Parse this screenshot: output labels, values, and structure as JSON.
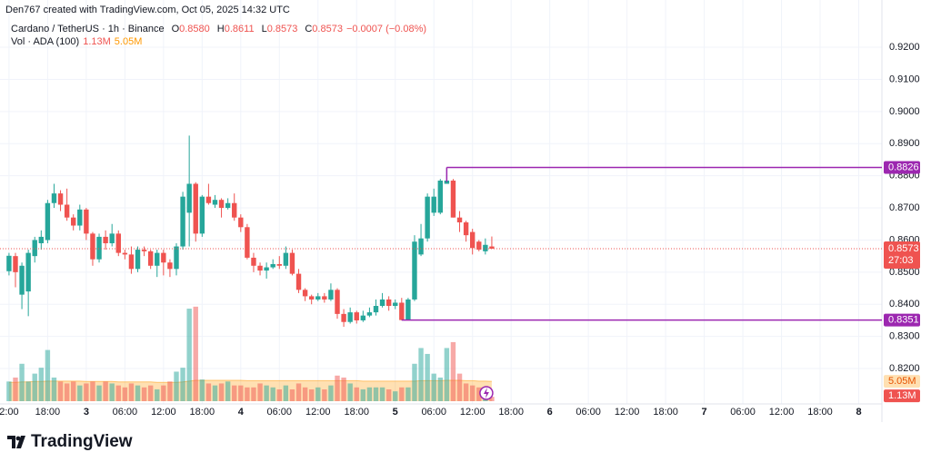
{
  "chart_data": {
    "type": "candlestick",
    "attribution": "Den767 created with TradingView.com, Oct 05, 2025 14:32 UTC",
    "symbol": "Cardano / TetherUS · 1h · Binance",
    "ohlc_legend": [
      {
        "key": "O",
        "value": "0.8580"
      },
      {
        "key": "H",
        "value": "0.8611"
      },
      {
        "key": "L",
        "value": "0.8573"
      },
      {
        "key": "C",
        "value": "0.8573"
      }
    ],
    "change": "−0.0007 (−0.08%)",
    "volume_title": "Vol · ADA (100)",
    "volume_label": "1.13M",
    "volume_ma_label": "5.05M",
    "brand": "TradingView",
    "up_color": "#26a69a",
    "down_color": "#ef5350",
    "level_color": "#9c27b0",
    "ma_color": "#ff9800",
    "x": [
      0,
      1,
      2,
      3,
      4,
      5,
      6,
      7,
      8,
      9,
      10,
      11,
      12,
      13,
      14,
      15,
      16,
      17,
      18,
      19,
      20,
      21,
      22,
      23,
      24,
      25,
      26,
      27,
      28,
      29,
      30,
      31,
      32,
      33,
      34,
      35,
      36,
      37,
      38,
      39,
      40,
      41,
      42,
      43,
      44,
      45,
      46,
      47,
      48,
      49,
      50,
      51,
      52,
      53,
      54,
      55,
      56,
      57,
      58,
      59,
      60,
      61,
      62,
      63,
      64,
      65,
      66,
      67,
      68,
      69,
      70,
      71,
      72,
      73,
      74,
      75
    ],
    "open": [
      0.8503,
      0.855,
      0.843,
      0.844,
      0.855,
      0.859,
      0.86,
      0.8715,
      0.8745,
      0.871,
      0.867,
      0.8645,
      0.8695,
      0.862,
      0.854,
      0.861,
      0.859,
      0.862,
      0.856,
      0.8555,
      0.851,
      0.857,
      0.8565,
      0.852,
      0.856,
      0.853,
      0.851,
      0.858,
      0.8685,
      0.8775,
      0.862,
      0.8735,
      0.871,
      0.8725,
      0.87,
      0.8715,
      0.867,
      0.864,
      0.8545,
      0.852,
      0.8505,
      0.8515,
      0.8525,
      0.852,
      0.856,
      0.8495,
      0.8445,
      0.8425,
      0.8415,
      0.8425,
      0.8415,
      0.8445,
      0.837,
      0.8345,
      0.8375,
      0.835,
      0.8365,
      0.8375,
      0.8395,
      0.8415,
      0.8395,
      0.8405,
      0.8351,
      0.8415,
      0.8555,
      0.8605,
      0.8685,
      0.8685,
      0.8775,
      0.8785,
      0.867,
      0.8655,
      0.8625,
      0.8595,
      0.8565,
      0.858
    ],
    "high": [
      0.856,
      0.856,
      0.853,
      0.857,
      0.861,
      0.863,
      0.8725,
      0.8775,
      0.8755,
      0.876,
      0.868,
      0.871,
      0.87,
      0.8625,
      0.862,
      0.863,
      0.865,
      0.863,
      0.857,
      0.858,
      0.858,
      0.858,
      0.857,
      0.857,
      0.857,
      0.854,
      0.859,
      0.875,
      0.8925,
      0.878,
      0.874,
      0.8775,
      0.874,
      0.873,
      0.873,
      0.8745,
      0.868,
      0.865,
      0.856,
      0.853,
      0.853,
      0.854,
      0.855,
      0.858,
      0.857,
      0.851,
      0.845,
      0.843,
      0.8435,
      0.8435,
      0.8465,
      0.845,
      0.8385,
      0.839,
      0.838,
      0.838,
      0.839,
      0.8415,
      0.8435,
      0.8425,
      0.8415,
      0.842,
      0.842,
      0.8615,
      0.865,
      0.8745,
      0.876,
      0.879,
      0.8826,
      0.879,
      0.869,
      0.866,
      0.8635,
      0.86,
      0.8605,
      0.8611
    ],
    "low": [
      0.849,
      0.8453,
      0.8385,
      0.8363,
      0.853,
      0.857,
      0.859,
      0.87,
      0.869,
      0.866,
      0.863,
      0.863,
      0.86,
      0.852,
      0.853,
      0.857,
      0.858,
      0.855,
      0.854,
      0.8495,
      0.85,
      0.855,
      0.851,
      0.8485,
      0.849,
      0.8485,
      0.849,
      0.857,
      0.858,
      0.8595,
      0.861,
      0.871,
      0.87,
      0.867,
      0.8695,
      0.866,
      0.8625,
      0.854,
      0.85,
      0.849,
      0.848,
      0.851,
      0.851,
      0.851,
      0.849,
      0.8435,
      0.841,
      0.84,
      0.841,
      0.8405,
      0.841,
      0.8355,
      0.833,
      0.834,
      0.834,
      0.8345,
      0.836,
      0.8365,
      0.839,
      0.838,
      0.8385,
      0.835,
      0.835,
      0.841,
      0.855,
      0.8595,
      0.8675,
      0.868,
      0.8775,
      0.867,
      0.8625,
      0.8595,
      0.8555,
      0.8565,
      0.8555,
      0.8573
    ],
    "close": [
      0.8551,
      0.85,
      0.852,
      0.856,
      0.86,
      0.861,
      0.8715,
      0.8745,
      0.871,
      0.867,
      0.8645,
      0.8695,
      0.862,
      0.854,
      0.861,
      0.859,
      0.862,
      0.856,
      0.8555,
      0.851,
      0.857,
      0.8565,
      0.852,
      0.856,
      0.853,
      0.851,
      0.858,
      0.8735,
      0.8775,
      0.862,
      0.8735,
      0.8715,
      0.8725,
      0.87,
      0.8715,
      0.867,
      0.864,
      0.8545,
      0.852,
      0.8505,
      0.8515,
      0.8525,
      0.852,
      0.856,
      0.8495,
      0.8445,
      0.8425,
      0.8415,
      0.8425,
      0.8415,
      0.8445,
      0.837,
      0.8345,
      0.8375,
      0.835,
      0.8365,
      0.8375,
      0.8395,
      0.8415,
      0.8395,
      0.8405,
      0.8351,
      0.8415,
      0.8595,
      0.8605,
      0.8735,
      0.8735,
      0.8785,
      0.8785,
      0.867,
      0.8655,
      0.8615,
      0.8575,
      0.857,
      0.8585,
      0.8573
    ],
    "volume": [
      5,
      6,
      9.5,
      5,
      7,
      8.5,
      13,
      6,
      5,
      4.5,
      5,
      4,
      4.5,
      5,
      4,
      5,
      4.5,
      4,
      3.5,
      4.5,
      4,
      3.5,
      4,
      3,
      4,
      5,
      7.5,
      8.5,
      23.5,
      24,
      5.5,
      4.5,
      4,
      4.5,
      5,
      4,
      4,
      3.5,
      3.5,
      4.5,
      4,
      3.5,
      3,
      4,
      3,
      4.5,
      3.5,
      3,
      3.5,
      3,
      4,
      6.5,
      6,
      4.5,
      3.5,
      3,
      3.5,
      3.5,
      3.5,
      3,
      2.5,
      3.5,
      3.5,
      9.5,
      13.5,
      12,
      7,
      6,
      13.5,
      15,
      7,
      4.5,
      4,
      3.5,
      3,
      1.13
    ],
    "volume_ma": [
      4.8,
      4.8,
      4.9,
      4.9,
      5.0,
      5.0,
      5.1,
      5.1,
      5.1,
      5.1,
      5.1,
      5.1,
      5.0,
      5.0,
      5.0,
      5.0,
      5.0,
      4.9,
      4.9,
      4.9,
      4.9,
      4.9,
      4.9,
      4.8,
      4.8,
      4.8,
      4.8,
      4.9,
      5.1,
      5.3,
      5.3,
      5.3,
      5.3,
      5.3,
      5.3,
      5.3,
      5.3,
      5.2,
      5.2,
      5.2,
      5.2,
      5.2,
      5.2,
      5.2,
      5.2,
      5.2,
      5.2,
      5.2,
      5.2,
      5.2,
      5.2,
      5.2,
      5.2,
      5.2,
      5.2,
      5.1,
      5.1,
      5.1,
      5.1,
      5.1,
      5.1,
      5.1,
      5.1,
      5.1,
      5.2,
      5.2,
      5.2,
      5.2,
      5.3,
      5.3,
      5.3,
      5.2,
      5.2,
      5.1,
      5.1,
      5.05
    ],
    "volume_ylim": [
      0,
      24.2
    ],
    "ylim": [
      0.809,
      0.9347
    ],
    "yticks": [
      {
        "value": 0.82,
        "label": "0.8200"
      },
      {
        "value": 0.83,
        "label": "0.8300"
      },
      {
        "value": 0.84,
        "label": "0.8400"
      },
      {
        "value": 0.85,
        "label": "0.8500"
      },
      {
        "value": 0.86,
        "label": "0.8600"
      },
      {
        "value": 0.87,
        "label": "0.8700"
      },
      {
        "value": 0.88,
        "label": "0.8800"
      },
      {
        "value": 0.89,
        "label": "0.8900"
      },
      {
        "value": 0.9,
        "label": "0.9000"
      },
      {
        "value": 0.91,
        "label": "0.9100"
      },
      {
        "value": 0.92,
        "label": "0.9200"
      }
    ],
    "xlim": [
      -1.4,
      135.6
    ],
    "xticks": [
      {
        "value": 0,
        "label": "2:00"
      },
      {
        "value": 6,
        "label": "18:00"
      },
      {
        "value": 12,
        "label": "3"
      },
      {
        "value": 18,
        "label": "06:00"
      },
      {
        "value": 24,
        "label": "12:00"
      },
      {
        "value": 30,
        "label": "18:00"
      },
      {
        "value": 36,
        "label": "4"
      },
      {
        "value": 42,
        "label": "06:00"
      },
      {
        "value": 48,
        "label": "12:00"
      },
      {
        "value": 54,
        "label": "18:00"
      },
      {
        "value": 60,
        "label": "5"
      },
      {
        "value": 66,
        "label": "06:00"
      },
      {
        "value": 72,
        "label": "12:00"
      },
      {
        "value": 78,
        "label": "18:00"
      },
      {
        "value": 84,
        "label": "6"
      },
      {
        "value": 90,
        "label": "06:00"
      },
      {
        "value": 96,
        "label": "12:00"
      },
      {
        "value": 102,
        "label": "18:00"
      },
      {
        "value": 108,
        "label": "7"
      },
      {
        "value": 114,
        "label": "06:00"
      },
      {
        "value": 120,
        "label": "12:00"
      },
      {
        "value": 126,
        "label": "18:00"
      },
      {
        "value": 132,
        "label": "8"
      }
    ],
    "levels": [
      {
        "value": 0.8826,
        "label": "0.8826",
        "x": 68
      },
      {
        "value": 0.8351,
        "label": "0.8351",
        "x": 61
      }
    ],
    "last_price": {
      "value": 0.8573,
      "label": "0.8573"
    },
    "countdown": "27:03",
    "grid": true
  }
}
